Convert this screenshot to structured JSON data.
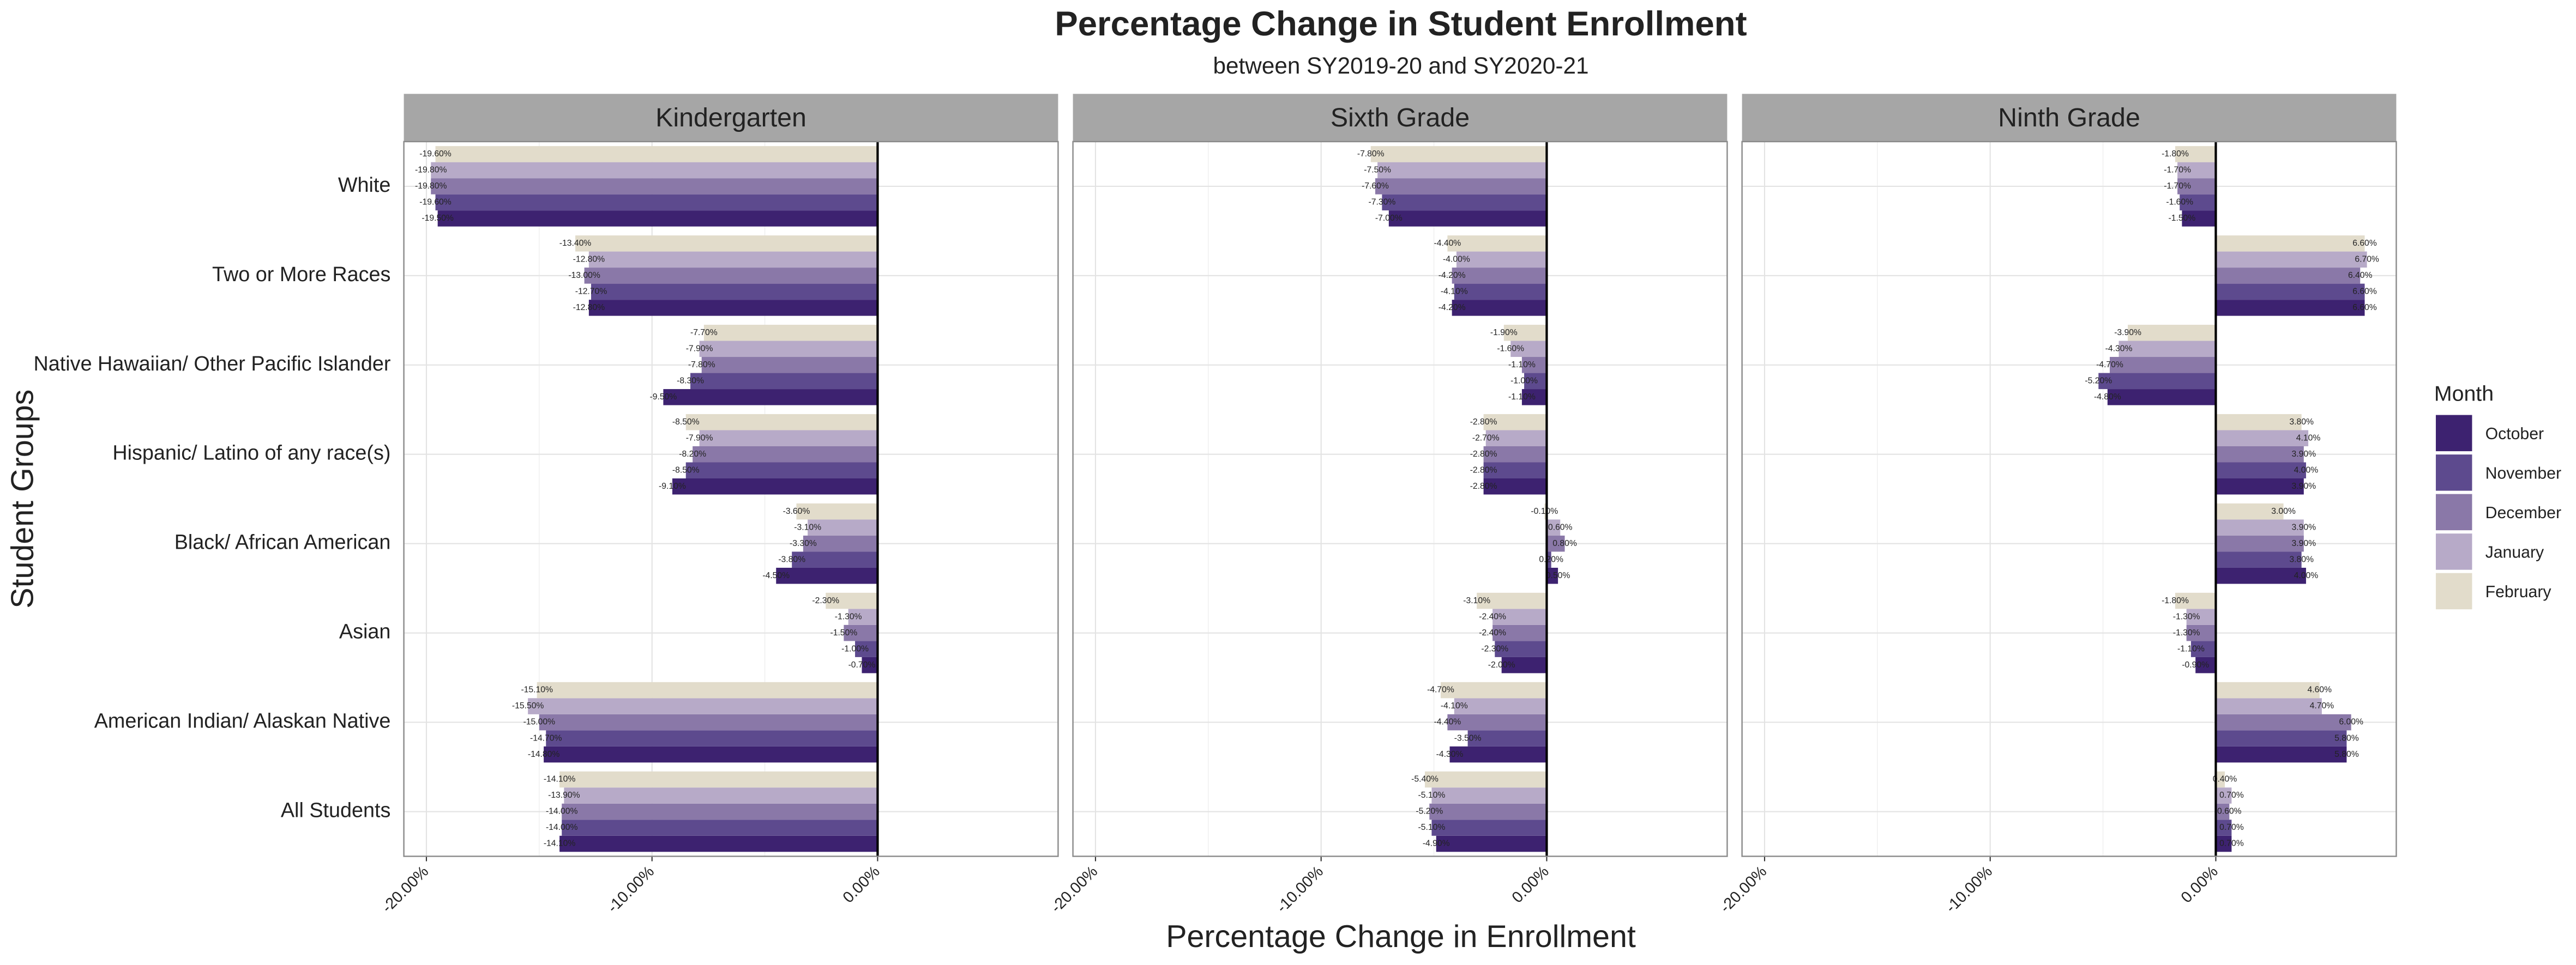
{
  "chart_data": {
    "type": "bar",
    "title": "Percentage Change in Student Enrollment",
    "subtitle": "between SY2019-20 and SY2020-21",
    "x_label": "Percentage Change in Enrollment",
    "y_label": "Student Groups",
    "legend_title": "Month",
    "grid": true,
    "legend_position": "right",
    "categories": [
      "White",
      "Two or More Races",
      "Native Hawaiian/ Other Pacific Islander",
      "Hispanic/ Latino of any race(s)",
      "Black/ African American",
      "Asian",
      "American Indian/ Alaskan Native",
      "All Students"
    ],
    "series": [
      {
        "name": "October",
        "color": "#3d2270"
      },
      {
        "name": "November",
        "color": "#5d4a8e"
      },
      {
        "name": "December",
        "color": "#8a78a8"
      },
      {
        "name": "January",
        "color": "#b7aac8"
      },
      {
        "name": "February",
        "color": "#e2dccb"
      }
    ],
    "panels": [
      {
        "title": "Kindergarten",
        "xlim": [
          -21,
          8
        ],
        "xticks": [
          {
            "value": -20,
            "label": "-20.00%"
          },
          {
            "value": -10,
            "label": "-10.00%"
          },
          {
            "value": 0,
            "label": "0.00%"
          }
        ],
        "series": [
          {
            "values": [
              -19.5,
              -12.8,
              -9.5,
              -9.1,
              -4.5,
              -0.7,
              -14.8,
              -14.1
            ],
            "value_labels": [
              "-19.50%",
              "-12.80%",
              "-9.50%",
              "-9.10%",
              "-4.50%",
              "-0.70%",
              "-14.80%",
              "-14.10%"
            ]
          },
          {
            "values": [
              -19.6,
              -12.7,
              -8.3,
              -8.5,
              -3.8,
              -1.0,
              -14.7,
              -14.0
            ],
            "value_labels": [
              "-19.60%",
              "-12.70%",
              "-8.30%",
              "-8.50%",
              "-3.80%",
              "-1.00%",
              "-14.70%",
              "-14.00%"
            ]
          },
          {
            "values": [
              -19.8,
              -13.0,
              -7.8,
              -8.2,
              -3.3,
              -1.5,
              -15.0,
              -14.0
            ],
            "value_labels": [
              "-19.80%",
              "-13.00%",
              "-7.80%",
              "-8.20%",
              "-3.30%",
              "-1.50%",
              "-15.00%",
              "-14.00%"
            ]
          },
          {
            "values": [
              -19.8,
              -12.8,
              -7.9,
              -7.9,
              -3.1,
              -1.3,
              -15.5,
              -13.9
            ],
            "value_labels": [
              "-19.80%",
              "-12.80%",
              "-7.90%",
              "-7.90%",
              "-3.10%",
              "-1.30%",
              "-15.50%",
              "-13.90%"
            ]
          },
          {
            "values": [
              -19.6,
              -13.4,
              -7.7,
              -8.5,
              -3.6,
              -2.3,
              -15.1,
              -14.1
            ],
            "value_labels": [
              "-19.60%",
              "-13.40%",
              "-7.70%",
              "-8.50%",
              "-3.60%",
              "-2.30%",
              "-15.10%",
              "-14.10%"
            ]
          }
        ]
      },
      {
        "title": "Sixth Grade",
        "xlim": [
          -21,
          8
        ],
        "xticks": [
          {
            "value": -20,
            "label": "-20.00%"
          },
          {
            "value": -10,
            "label": "-10.00%"
          },
          {
            "value": 0,
            "label": "0.00%"
          }
        ],
        "series": [
          {
            "values": [
              -7.0,
              -4.2,
              -1.1,
              -2.8,
              0.5,
              -2.0,
              -4.3,
              -4.9
            ],
            "value_labels": [
              "-7.00%",
              "-4.20%",
              "-1.10%",
              "-2.80%",
              "0.50%",
              "-2.00%",
              "-4.30%",
              "-4.90%"
            ]
          },
          {
            "values": [
              -7.3,
              -4.1,
              -1.0,
              -2.8,
              0.2,
              -2.3,
              -3.5,
              -5.1
            ],
            "value_labels": [
              "-7.30%",
              "-4.10%",
              "-1.00%",
              "-2.80%",
              "0.20%",
              "-2.30%",
              "-3.50%",
              "-5.10%"
            ]
          },
          {
            "values": [
              -7.6,
              -4.2,
              -1.1,
              -2.8,
              0.8,
              -2.4,
              -4.4,
              -5.2
            ],
            "value_labels": [
              "-7.60%",
              "-4.20%",
              "-1.10%",
              "-2.80%",
              "0.80%",
              "-2.40%",
              "-4.40%",
              "-5.20%"
            ]
          },
          {
            "values": [
              -7.5,
              -4.0,
              -1.6,
              -2.7,
              0.6,
              -2.4,
              -4.1,
              -5.1
            ],
            "value_labels": [
              "-7.50%",
              "-4.00%",
              "-1.60%",
              "-2.70%",
              "0.60%",
              "-2.40%",
              "-4.10%",
              "-5.10%"
            ]
          },
          {
            "values": [
              -7.8,
              -4.4,
              -1.9,
              -2.8,
              -0.1,
              -3.1,
              -4.7,
              -5.4
            ],
            "value_labels": [
              "-7.80%",
              "-4.40%",
              "-1.90%",
              "-2.80%",
              "-0.10%",
              "-3.10%",
              "-4.70%",
              "-5.40%"
            ]
          }
        ]
      },
      {
        "title": "Ninth Grade",
        "xlim": [
          -21,
          8
        ],
        "xticks": [
          {
            "value": -20,
            "label": "-20.00%"
          },
          {
            "value": -10,
            "label": "-10.00%"
          },
          {
            "value": 0,
            "label": "0.00%"
          }
        ],
        "series": [
          {
            "values": [
              -1.5,
              6.6,
              -4.8,
              3.9,
              4.0,
              -0.9,
              5.8,
              0.7
            ],
            "value_labels": [
              "-1.50%",
              "6.60%",
              "-4.80%",
              "3.90%",
              "4.00%",
              "-0.90%",
              "5.80%",
              "0.70%"
            ]
          },
          {
            "values": [
              -1.6,
              6.6,
              -5.2,
              4.0,
              3.8,
              -1.1,
              5.8,
              0.7
            ],
            "value_labels": [
              "-1.60%",
              "6.60%",
              "-5.20%",
              "4.00%",
              "3.80%",
              "-1.10%",
              "5.80%",
              "0.70%"
            ]
          },
          {
            "values": [
              -1.7,
              6.4,
              -4.7,
              3.9,
              3.9,
              -1.3,
              6.0,
              0.6
            ],
            "value_labels": [
              "-1.70%",
              "6.40%",
              "-4.70%",
              "3.90%",
              "3.90%",
              "-1.30%",
              "6.00%",
              "0.60%"
            ]
          },
          {
            "values": [
              -1.7,
              6.7,
              -4.3,
              4.1,
              3.9,
              -1.3,
              4.7,
              0.7
            ],
            "value_labels": [
              "-1.70%",
              "6.70%",
              "-4.30%",
              "4.10%",
              "3.90%",
              "-1.30%",
              "4.70%",
              "0.70%"
            ]
          },
          {
            "values": [
              -1.8,
              6.6,
              -3.9,
              3.8,
              3.0,
              -1.8,
              4.6,
              0.4
            ],
            "value_labels": [
              "-1.80%",
              "6.60%",
              "-3.90%",
              "3.80%",
              "3.00%",
              "-1.80%",
              "4.60%",
              "0.40%"
            ]
          }
        ]
      }
    ]
  }
}
